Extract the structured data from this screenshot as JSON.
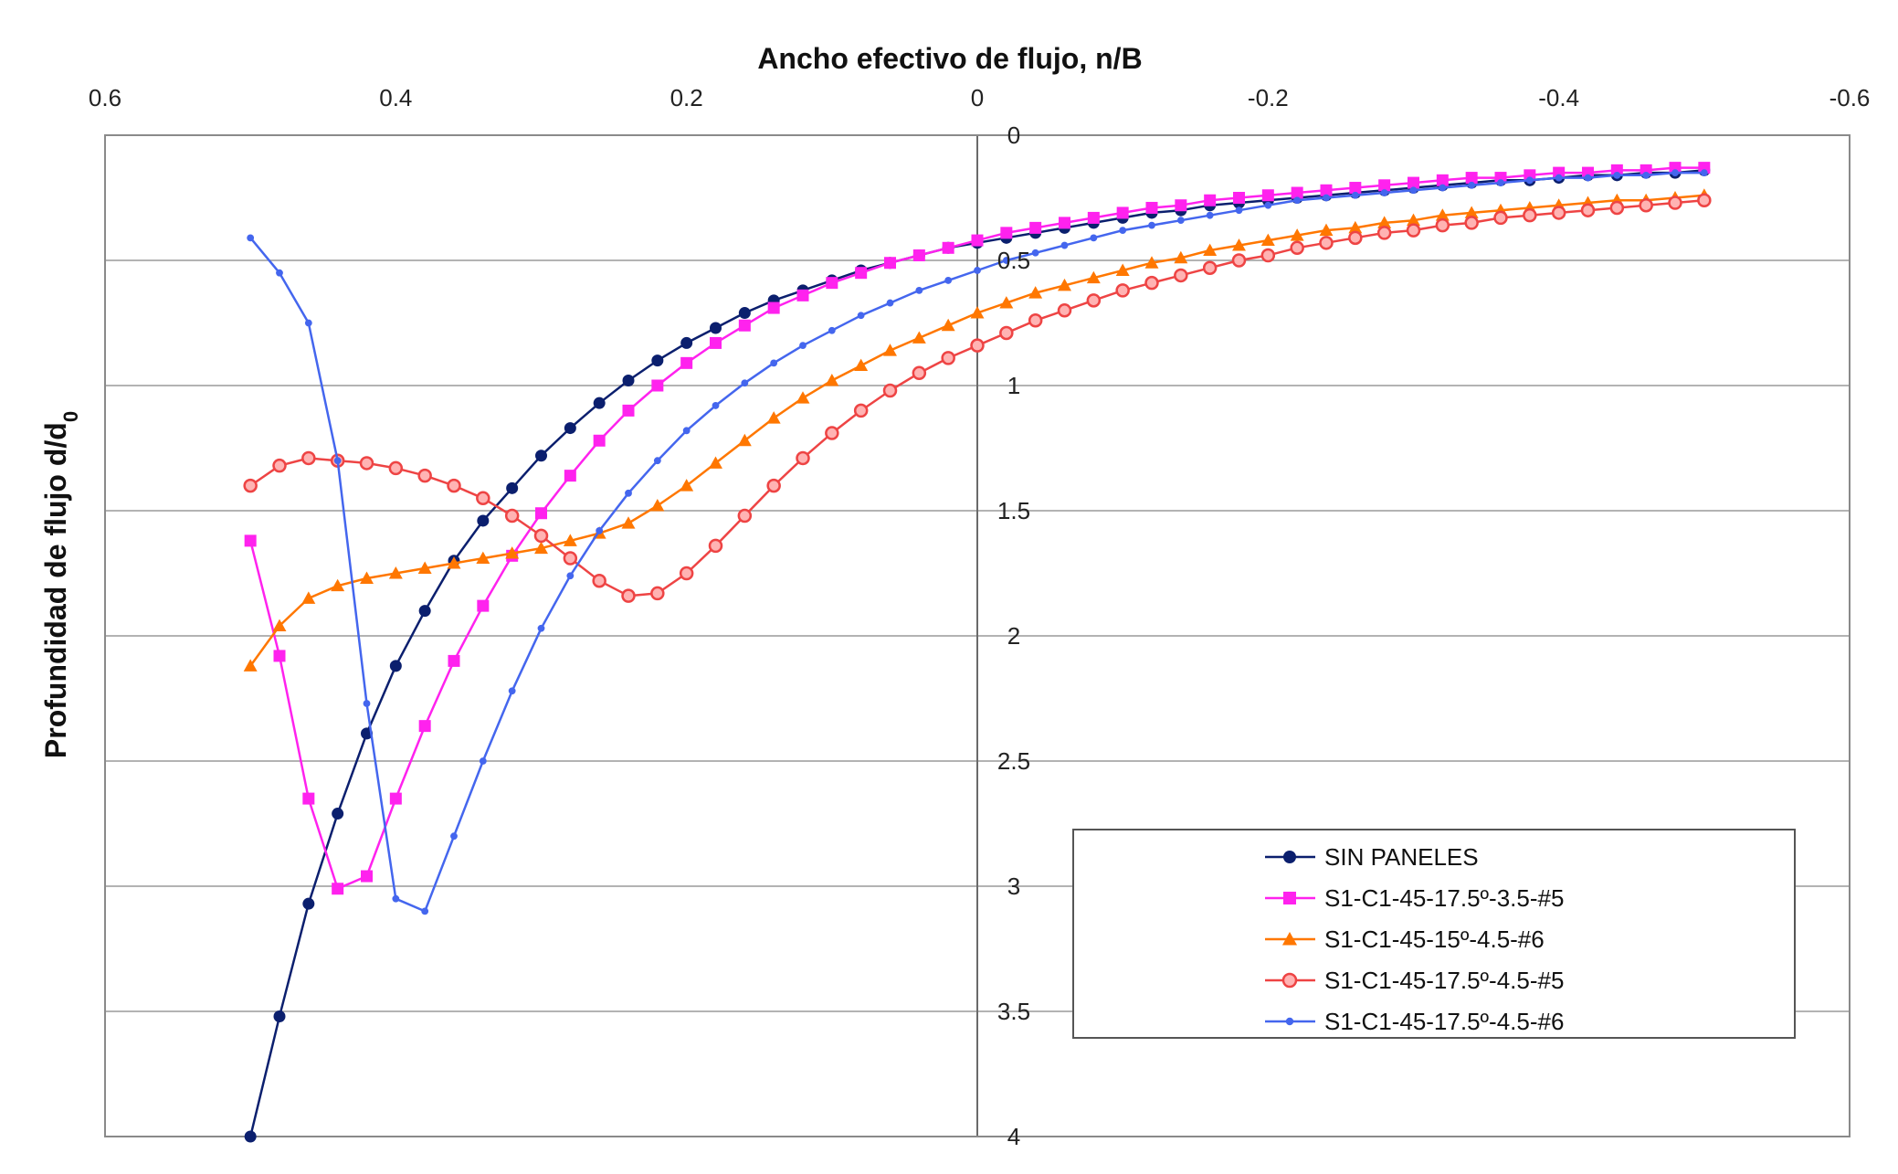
{
  "chart_data": {
    "type": "line",
    "title": "",
    "xlabel": "Ancho efectivo de flujo, n/B",
    "ylabel_main": "Profundidad de flujo d/d",
    "ylabel_subscript": "0",
    "xlim": [
      0.6,
      -0.6
    ],
    "ylim": [
      0,
      4
    ],
    "x_reversed": true,
    "y_reversed": true,
    "x_ticks": [
      0.6,
      0.4,
      0.2,
      0,
      -0.2,
      -0.4,
      -0.6
    ],
    "x_tick_labels": [
      "0.6",
      "0.4",
      "0.2",
      "0",
      "-0.2",
      "-0.4",
      "-0.6"
    ],
    "y_ticks": [
      0,
      0.5,
      1,
      1.5,
      2,
      2.5,
      3,
      3.5,
      4
    ],
    "y_tick_labels": [
      "0",
      "0.5",
      "1",
      "1.5",
      "2",
      "2.5",
      "3",
      "3.5",
      "4"
    ],
    "grid": true,
    "legend_position": "bottom-right",
    "series": [
      {
        "name": "SIN PANELES",
        "color": "#0b1f6e",
        "marker": "circle",
        "points": [
          [
            0.5,
            4.0
          ],
          [
            0.48,
            3.52
          ],
          [
            0.46,
            3.07
          ],
          [
            0.44,
            2.71
          ],
          [
            0.42,
            2.39
          ],
          [
            0.4,
            2.12
          ],
          [
            0.38,
            1.9
          ],
          [
            0.36,
            1.7
          ],
          [
            0.34,
            1.54
          ],
          [
            0.32,
            1.41
          ],
          [
            0.3,
            1.28
          ],
          [
            0.28,
            1.17
          ],
          [
            0.26,
            1.07
          ],
          [
            0.24,
            0.98
          ],
          [
            0.22,
            0.9
          ],
          [
            0.2,
            0.83
          ],
          [
            0.18,
            0.77
          ],
          [
            0.16,
            0.71
          ],
          [
            0.14,
            0.66
          ],
          [
            0.12,
            0.62
          ],
          [
            0.1,
            0.58
          ],
          [
            0.08,
            0.54
          ],
          [
            0.06,
            0.51
          ],
          [
            0.04,
            0.48
          ],
          [
            0.02,
            0.45
          ],
          [
            0.0,
            0.43
          ],
          [
            -0.02,
            0.41
          ],
          [
            -0.04,
            0.39
          ],
          [
            -0.06,
            0.37
          ],
          [
            -0.08,
            0.35
          ],
          [
            -0.1,
            0.33
          ],
          [
            -0.12,
            0.31
          ],
          [
            -0.14,
            0.3
          ],
          [
            -0.16,
            0.28
          ],
          [
            -0.18,
            0.27
          ],
          [
            -0.2,
            0.26
          ],
          [
            -0.22,
            0.25
          ],
          [
            -0.24,
            0.24
          ],
          [
            -0.26,
            0.23
          ],
          [
            -0.28,
            0.22
          ],
          [
            -0.3,
            0.21
          ],
          [
            -0.32,
            0.2
          ],
          [
            -0.34,
            0.19
          ],
          [
            -0.36,
            0.18
          ],
          [
            -0.38,
            0.18
          ],
          [
            -0.4,
            0.17
          ],
          [
            -0.42,
            0.16
          ],
          [
            -0.44,
            0.16
          ],
          [
            -0.46,
            0.15
          ],
          [
            -0.48,
            0.15
          ],
          [
            -0.5,
            0.14
          ]
        ]
      },
      {
        "name": "S1-C1-45-17.5º-3.5-#5",
        "color": "#ff22ee",
        "marker": "square",
        "points": [
          [
            0.5,
            1.62
          ],
          [
            0.48,
            2.08
          ],
          [
            0.46,
            2.65
          ],
          [
            0.44,
            3.01
          ],
          [
            0.42,
            2.96
          ],
          [
            0.4,
            2.65
          ],
          [
            0.38,
            2.36
          ],
          [
            0.36,
            2.1
          ],
          [
            0.34,
            1.88
          ],
          [
            0.32,
            1.68
          ],
          [
            0.3,
            1.51
          ],
          [
            0.28,
            1.36
          ],
          [
            0.26,
            1.22
          ],
          [
            0.24,
            1.1
          ],
          [
            0.22,
            1.0
          ],
          [
            0.2,
            0.91
          ],
          [
            0.18,
            0.83
          ],
          [
            0.16,
            0.76
          ],
          [
            0.14,
            0.69
          ],
          [
            0.12,
            0.64
          ],
          [
            0.1,
            0.59
          ],
          [
            0.08,
            0.55
          ],
          [
            0.06,
            0.51
          ],
          [
            0.04,
            0.48
          ],
          [
            0.02,
            0.45
          ],
          [
            0.0,
            0.42
          ],
          [
            -0.02,
            0.39
          ],
          [
            -0.04,
            0.37
          ],
          [
            -0.06,
            0.35
          ],
          [
            -0.08,
            0.33
          ],
          [
            -0.1,
            0.31
          ],
          [
            -0.12,
            0.29
          ],
          [
            -0.14,
            0.28
          ],
          [
            -0.16,
            0.26
          ],
          [
            -0.18,
            0.25
          ],
          [
            -0.2,
            0.24
          ],
          [
            -0.22,
            0.23
          ],
          [
            -0.24,
            0.22
          ],
          [
            -0.26,
            0.21
          ],
          [
            -0.28,
            0.2
          ],
          [
            -0.3,
            0.19
          ],
          [
            -0.32,
            0.18
          ],
          [
            -0.34,
            0.17
          ],
          [
            -0.36,
            0.17
          ],
          [
            -0.38,
            0.16
          ],
          [
            -0.4,
            0.15
          ],
          [
            -0.42,
            0.15
          ],
          [
            -0.44,
            0.14
          ],
          [
            -0.46,
            0.14
          ],
          [
            -0.48,
            0.13
          ],
          [
            -0.5,
            0.13
          ]
        ]
      },
      {
        "name": "S1-C1-45-15º-4.5-#6",
        "color": "#ff7700",
        "marker": "triangle",
        "points": [
          [
            0.5,
            2.12
          ],
          [
            0.48,
            1.96
          ],
          [
            0.46,
            1.85
          ],
          [
            0.44,
            1.8
          ],
          [
            0.42,
            1.77
          ],
          [
            0.4,
            1.75
          ],
          [
            0.38,
            1.73
          ],
          [
            0.36,
            1.71
          ],
          [
            0.34,
            1.69
          ],
          [
            0.32,
            1.67
          ],
          [
            0.3,
            1.65
          ],
          [
            0.28,
            1.62
          ],
          [
            0.26,
            1.59
          ],
          [
            0.24,
            1.55
          ],
          [
            0.22,
            1.48
          ],
          [
            0.2,
            1.4
          ],
          [
            0.18,
            1.31
          ],
          [
            0.16,
            1.22
          ],
          [
            0.14,
            1.13
          ],
          [
            0.12,
            1.05
          ],
          [
            0.1,
            0.98
          ],
          [
            0.08,
            0.92
          ],
          [
            0.06,
            0.86
          ],
          [
            0.04,
            0.81
          ],
          [
            0.02,
            0.76
          ],
          [
            0.0,
            0.71
          ],
          [
            -0.02,
            0.67
          ],
          [
            -0.04,
            0.63
          ],
          [
            -0.06,
            0.6
          ],
          [
            -0.08,
            0.57
          ],
          [
            -0.1,
            0.54
          ],
          [
            -0.12,
            0.51
          ],
          [
            -0.14,
            0.49
          ],
          [
            -0.16,
            0.46
          ],
          [
            -0.18,
            0.44
          ],
          [
            -0.2,
            0.42
          ],
          [
            -0.22,
            0.4
          ],
          [
            -0.24,
            0.38
          ],
          [
            -0.26,
            0.37
          ],
          [
            -0.28,
            0.35
          ],
          [
            -0.3,
            0.34
          ],
          [
            -0.32,
            0.32
          ],
          [
            -0.34,
            0.31
          ],
          [
            -0.36,
            0.3
          ],
          [
            -0.38,
            0.29
          ],
          [
            -0.4,
            0.28
          ],
          [
            -0.42,
            0.27
          ],
          [
            -0.44,
            0.26
          ],
          [
            -0.46,
            0.26
          ],
          [
            -0.48,
            0.25
          ],
          [
            -0.5,
            0.24
          ]
        ]
      },
      {
        "name": "S1-C1-45-17.5º-4.5-#5",
        "color": "#ee4444",
        "marker": "circle-open",
        "points": [
          [
            0.5,
            1.4
          ],
          [
            0.48,
            1.32
          ],
          [
            0.46,
            1.29
          ],
          [
            0.44,
            1.3
          ],
          [
            0.42,
            1.31
          ],
          [
            0.4,
            1.33
          ],
          [
            0.38,
            1.36
          ],
          [
            0.36,
            1.4
          ],
          [
            0.34,
            1.45
          ],
          [
            0.32,
            1.52
          ],
          [
            0.3,
            1.6
          ],
          [
            0.28,
            1.69
          ],
          [
            0.26,
            1.78
          ],
          [
            0.24,
            1.84
          ],
          [
            0.22,
            1.83
          ],
          [
            0.2,
            1.75
          ],
          [
            0.18,
            1.64
          ],
          [
            0.16,
            1.52
          ],
          [
            0.14,
            1.4
          ],
          [
            0.12,
            1.29
          ],
          [
            0.1,
            1.19
          ],
          [
            0.08,
            1.1
          ],
          [
            0.06,
            1.02
          ],
          [
            0.04,
            0.95
          ],
          [
            0.02,
            0.89
          ],
          [
            0.0,
            0.84
          ],
          [
            -0.02,
            0.79
          ],
          [
            -0.04,
            0.74
          ],
          [
            -0.06,
            0.7
          ],
          [
            -0.08,
            0.66
          ],
          [
            -0.1,
            0.62
          ],
          [
            -0.12,
            0.59
          ],
          [
            -0.14,
            0.56
          ],
          [
            -0.16,
            0.53
          ],
          [
            -0.18,
            0.5
          ],
          [
            -0.2,
            0.48
          ],
          [
            -0.22,
            0.45
          ],
          [
            -0.24,
            0.43
          ],
          [
            -0.26,
            0.41
          ],
          [
            -0.28,
            0.39
          ],
          [
            -0.3,
            0.38
          ],
          [
            -0.32,
            0.36
          ],
          [
            -0.34,
            0.35
          ],
          [
            -0.36,
            0.33
          ],
          [
            -0.38,
            0.32
          ],
          [
            -0.4,
            0.31
          ],
          [
            -0.42,
            0.3
          ],
          [
            -0.44,
            0.29
          ],
          [
            -0.46,
            0.28
          ],
          [
            -0.48,
            0.27
          ],
          [
            -0.5,
            0.26
          ]
        ]
      },
      {
        "name": "S1-C1-45-17.5º-4.5-#6",
        "color": "#4466ee",
        "marker": "dot",
        "points": [
          [
            0.5,
            0.41
          ],
          [
            0.48,
            0.55
          ],
          [
            0.46,
            0.75
          ],
          [
            0.44,
            1.3
          ],
          [
            0.42,
            2.27
          ],
          [
            0.4,
            3.05
          ],
          [
            0.38,
            3.1
          ],
          [
            0.36,
            2.8
          ],
          [
            0.34,
            2.5
          ],
          [
            0.32,
            2.22
          ],
          [
            0.3,
            1.97
          ],
          [
            0.28,
            1.76
          ],
          [
            0.26,
            1.58
          ],
          [
            0.24,
            1.43
          ],
          [
            0.22,
            1.3
          ],
          [
            0.2,
            1.18
          ],
          [
            0.18,
            1.08
          ],
          [
            0.16,
            0.99
          ],
          [
            0.14,
            0.91
          ],
          [
            0.12,
            0.84
          ],
          [
            0.1,
            0.78
          ],
          [
            0.08,
            0.72
          ],
          [
            0.06,
            0.67
          ],
          [
            0.04,
            0.62
          ],
          [
            0.02,
            0.58
          ],
          [
            0.0,
            0.54
          ],
          [
            -0.02,
            0.5
          ],
          [
            -0.04,
            0.47
          ],
          [
            -0.06,
            0.44
          ],
          [
            -0.08,
            0.41
          ],
          [
            -0.1,
            0.38
          ],
          [
            -0.12,
            0.36
          ],
          [
            -0.14,
            0.34
          ],
          [
            -0.16,
            0.32
          ],
          [
            -0.18,
            0.3
          ],
          [
            -0.2,
            0.28
          ],
          [
            -0.22,
            0.26
          ],
          [
            -0.24,
            0.25
          ],
          [
            -0.26,
            0.24
          ],
          [
            -0.28,
            0.23
          ],
          [
            -0.3,
            0.22
          ],
          [
            -0.32,
            0.21
          ],
          [
            -0.34,
            0.2
          ],
          [
            -0.36,
            0.19
          ],
          [
            -0.38,
            0.18
          ],
          [
            -0.4,
            0.17
          ],
          [
            -0.42,
            0.17
          ],
          [
            -0.44,
            0.16
          ],
          [
            -0.46,
            0.16
          ],
          [
            -0.48,
            0.15
          ],
          [
            -0.5,
            0.15
          ]
        ]
      }
    ]
  }
}
